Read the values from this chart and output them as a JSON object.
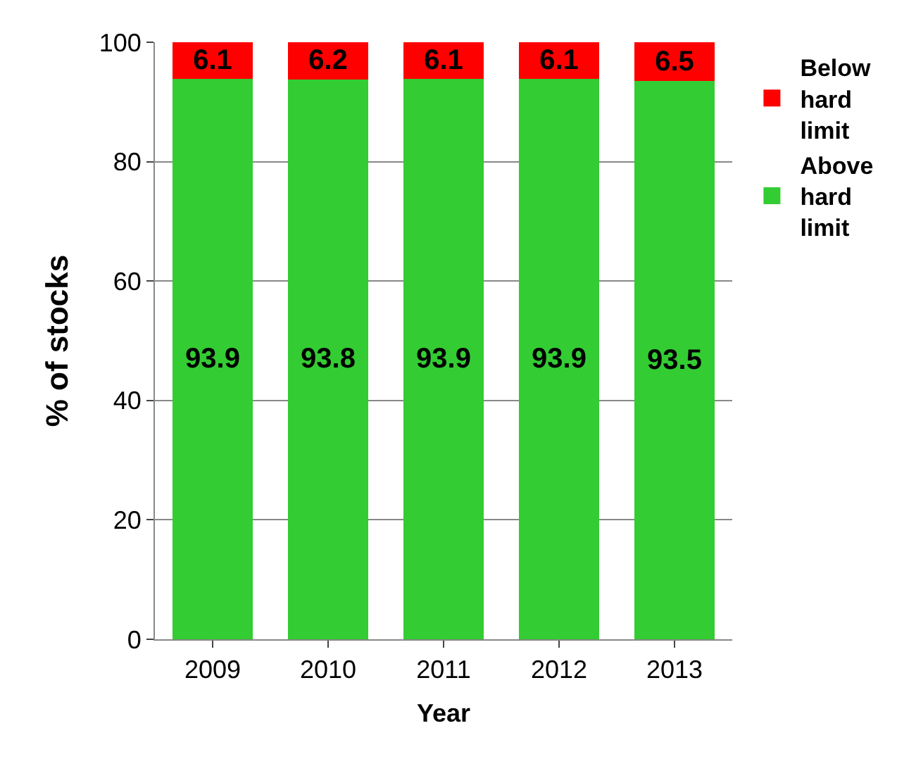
{
  "chart_data": {
    "type": "bar",
    "stacked": true,
    "xlabel": "Year",
    "ylabel": "% of stocks",
    "categories": [
      "2009",
      "2010",
      "2011",
      "2012",
      "2013"
    ],
    "series": [
      {
        "name": "Above hard limit",
        "color": "#33cc33",
        "values": [
          93.9,
          93.8,
          93.9,
          93.9,
          93.5
        ]
      },
      {
        "name": "Below hard limit",
        "color": "#ff0000",
        "values": [
          6.1,
          6.2,
          6.1,
          6.1,
          6.5
        ]
      }
    ],
    "ylim": [
      0,
      100
    ],
    "yticks": [
      0,
      20,
      40,
      60,
      80,
      100
    ],
    "grid": "y",
    "legend": "right",
    "data_labels": true
  }
}
